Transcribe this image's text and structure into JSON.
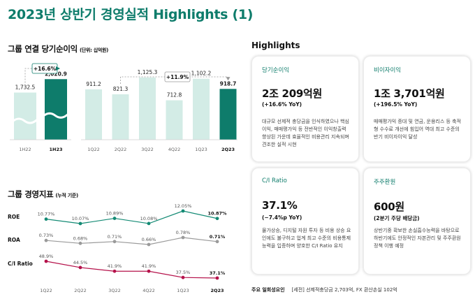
{
  "page_title": "2023년 상반기 경영실적 Highlights (1)",
  "chart_data": [
    {
      "type": "bar",
      "title": "그룹 연결 당기순이익",
      "unit": "(단위: 십억원)",
      "categories": [
        "1H22",
        "1H23"
      ],
      "values": [
        1732.5,
        2020.9
      ],
      "labels": [
        "1,732.5",
        "2,020.9"
      ],
      "growth_label": "+16.6%",
      "colors": [
        "#d3ece6",
        "#0e7c6b"
      ],
      "broken_axis": true
    },
    {
      "type": "bar",
      "categories": [
        "1Q22",
        "2Q22",
        "3Q22",
        "4Q22",
        "1Q23",
        "2Q23"
      ],
      "values": [
        911.2,
        821.3,
        1125.3,
        712.8,
        1102.2,
        918.7
      ],
      "labels": [
        "911.2",
        "821.3",
        "1,125.3",
        "712.8",
        "1,102.2",
        "918.7"
      ],
      "growth_label": "+11.9%",
      "colors": [
        "#d3ece6",
        "#d3ece6",
        "#d3ece6",
        "#d3ece6",
        "#d3ece6",
        "#0e7c6b"
      ],
      "ylim": [
        0,
        1200
      ]
    },
    {
      "type": "line",
      "title": "그룹 경영지표",
      "unit": "(누적 기준)",
      "categories": [
        "1Q22",
        "2Q22",
        "3Q22",
        "4Q22",
        "1Q23",
        "2Q23"
      ],
      "series": [
        {
          "name": "ROE",
          "values": [
            10.77,
            10.07,
            10.89,
            10.08,
            12.05,
            10.87
          ],
          "labels": [
            "10.77%",
            "10.07%",
            "10.89%",
            "10.08%",
            "12.05%",
            "10.87%"
          ],
          "color": "#138a74"
        },
        {
          "name": "ROA",
          "values": [
            0.73,
            0.68,
            0.71,
            0.66,
            0.78,
            0.71
          ],
          "labels": [
            "0.73%",
            "0.68%",
            "0.71%",
            "0.66%",
            "0.78%",
            "0.71%"
          ],
          "color": "#9a9a9a"
        },
        {
          "name": "C/I Ratio",
          "values": [
            48.9,
            44.5,
            41.9,
            41.9,
            37.5,
            37.1
          ],
          "labels": [
            "48.9%",
            "44.5%",
            "41.9%",
            "41.9%",
            "37.5%",
            "37.1%"
          ],
          "color": "#b5114a"
        }
      ]
    }
  ],
  "highlights": {
    "title": "Highlights",
    "cards": [
      {
        "title": "당기순이익",
        "value": "2조 209억원",
        "sub": "(+16.6% YoY)",
        "desc": "대규모 선제적 충당금을 인식하였으나 핵심이익, 매매평가익 등 전반적인 이익창출력 향상된 가운데 효율적인 비용관리 지속되며 견조한 실적 시현"
      },
      {
        "title": "비이자이익",
        "value": "1조 3,701억원",
        "sub": "(+196.5% YoY)",
        "desc": "매매평가익 증대 및 연금, 운용리스 등 축적형 수수료 개선에 힘입어 역대 최고 수준의 반기 비이자이익 달성"
      },
      {
        "title": "C/I Ratio",
        "value": "37.1%",
        "sub": "(−7.4%p YoY)",
        "desc": "물가상승, 디지털 자원 투자 등 비용 상승 요인에도 불구하고 업계 최고 수준의 비용통제능력을 입증하며 양호한 C/I Ratio 유지"
      },
      {
        "title": "주주환원",
        "value": "600원",
        "sub": "(2분기 주당 배당금)",
        "desc": "상반기중 확보한 손실흡수능력을 바탕으로 하반기에도 안정적인 자본관리 및 주주환원정책 이행 예정"
      }
    ]
  },
  "footnote": {
    "label": "주요 일회성요인",
    "text": "[세전] 선제적충당금 2,703억, FX 환산손실 102억"
  }
}
